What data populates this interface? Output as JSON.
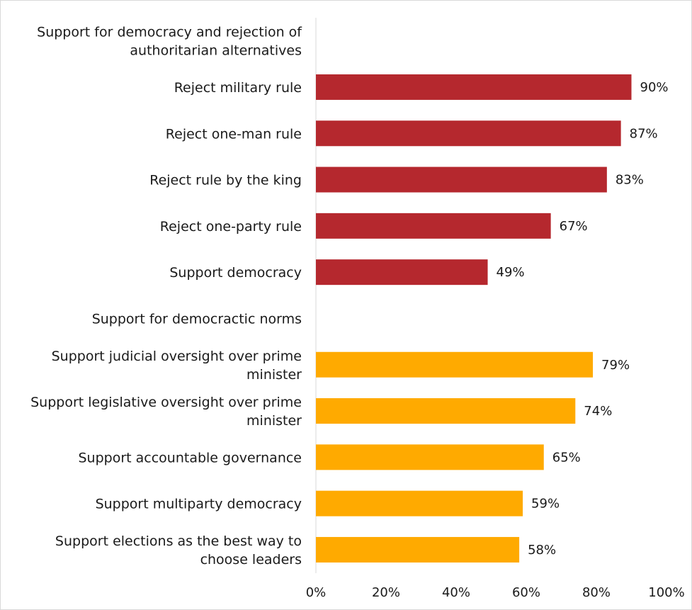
{
  "chart_data": {
    "type": "bar",
    "orientation": "horizontal",
    "title": "",
    "xlabel": "",
    "ylabel": "",
    "xlim": [
      0,
      100
    ],
    "x_ticks": [
      "0%",
      "20%",
      "40%",
      "60%",
      "80%",
      "100%"
    ],
    "grid": false,
    "legend": "none",
    "rows": [
      {
        "label": "Support for democracy and rejection of authoritarian alternatives",
        "value": null,
        "value_label": "",
        "color": ""
      },
      {
        "label": "Reject military rule",
        "value": 90,
        "value_label": "90%",
        "color": "#b5282e"
      },
      {
        "label": "Reject one-man rule",
        "value": 87,
        "value_label": "87%",
        "color": "#b5282e"
      },
      {
        "label": "Reject rule by the king",
        "value": 83,
        "value_label": "83%",
        "color": "#b5282e"
      },
      {
        "label": "Reject one-party rule",
        "value": 67,
        "value_label": "67%",
        "color": "#b5282e"
      },
      {
        "label": "Support democracy",
        "value": 49,
        "value_label": "49%",
        "color": "#b5282e"
      },
      {
        "label": "Support for democractic norms",
        "value": null,
        "value_label": "",
        "color": ""
      },
      {
        "label": "Support judicial oversight over prime minister",
        "value": 79,
        "value_label": "79%",
        "color": "#ffaa00"
      },
      {
        "label": "Support legislative oversight over prime minister",
        "value": 74,
        "value_label": "74%",
        "color": "#ffaa00"
      },
      {
        "label": "Support accountable governance",
        "value": 65,
        "value_label": "65%",
        "color": "#ffaa00"
      },
      {
        "label": "Support multiparty democracy",
        "value": 59,
        "value_label": "59%",
        "color": "#ffaa00"
      },
      {
        "label": "Support elections as the best way to choose leaders",
        "value": 58,
        "value_label": "58%",
        "color": "#ffaa00"
      }
    ]
  }
}
